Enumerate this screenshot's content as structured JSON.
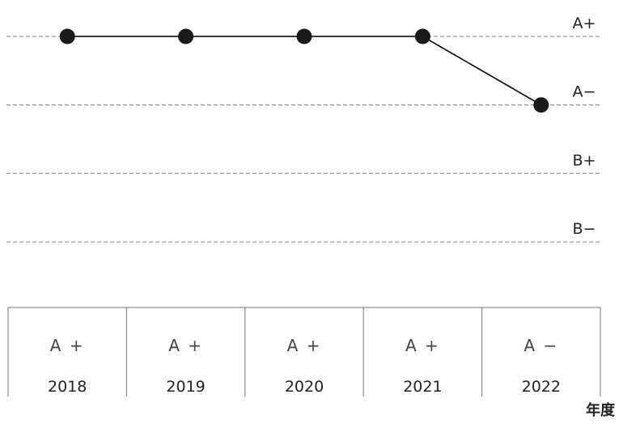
{
  "chart_data": {
    "type": "line",
    "x": [
      "2018",
      "2019",
      "2020",
      "2021",
      "2022"
    ],
    "y_levels": [
      "A+",
      "A−",
      "B+",
      "B−"
    ],
    "values": [
      "A+",
      "A+",
      "A+",
      "A+",
      "A−"
    ],
    "table_values": [
      "A +",
      "A +",
      "A +",
      "A +",
      "A −"
    ],
    "xlabel": "年度",
    "grid": true,
    "grid_style": "dashed",
    "line_color": "#000000",
    "marker_color": "#1a1a1a",
    "grid_color": "#9a9a9a",
    "table_line_color": "#8c8c8c",
    "text_color": "#222222"
  }
}
